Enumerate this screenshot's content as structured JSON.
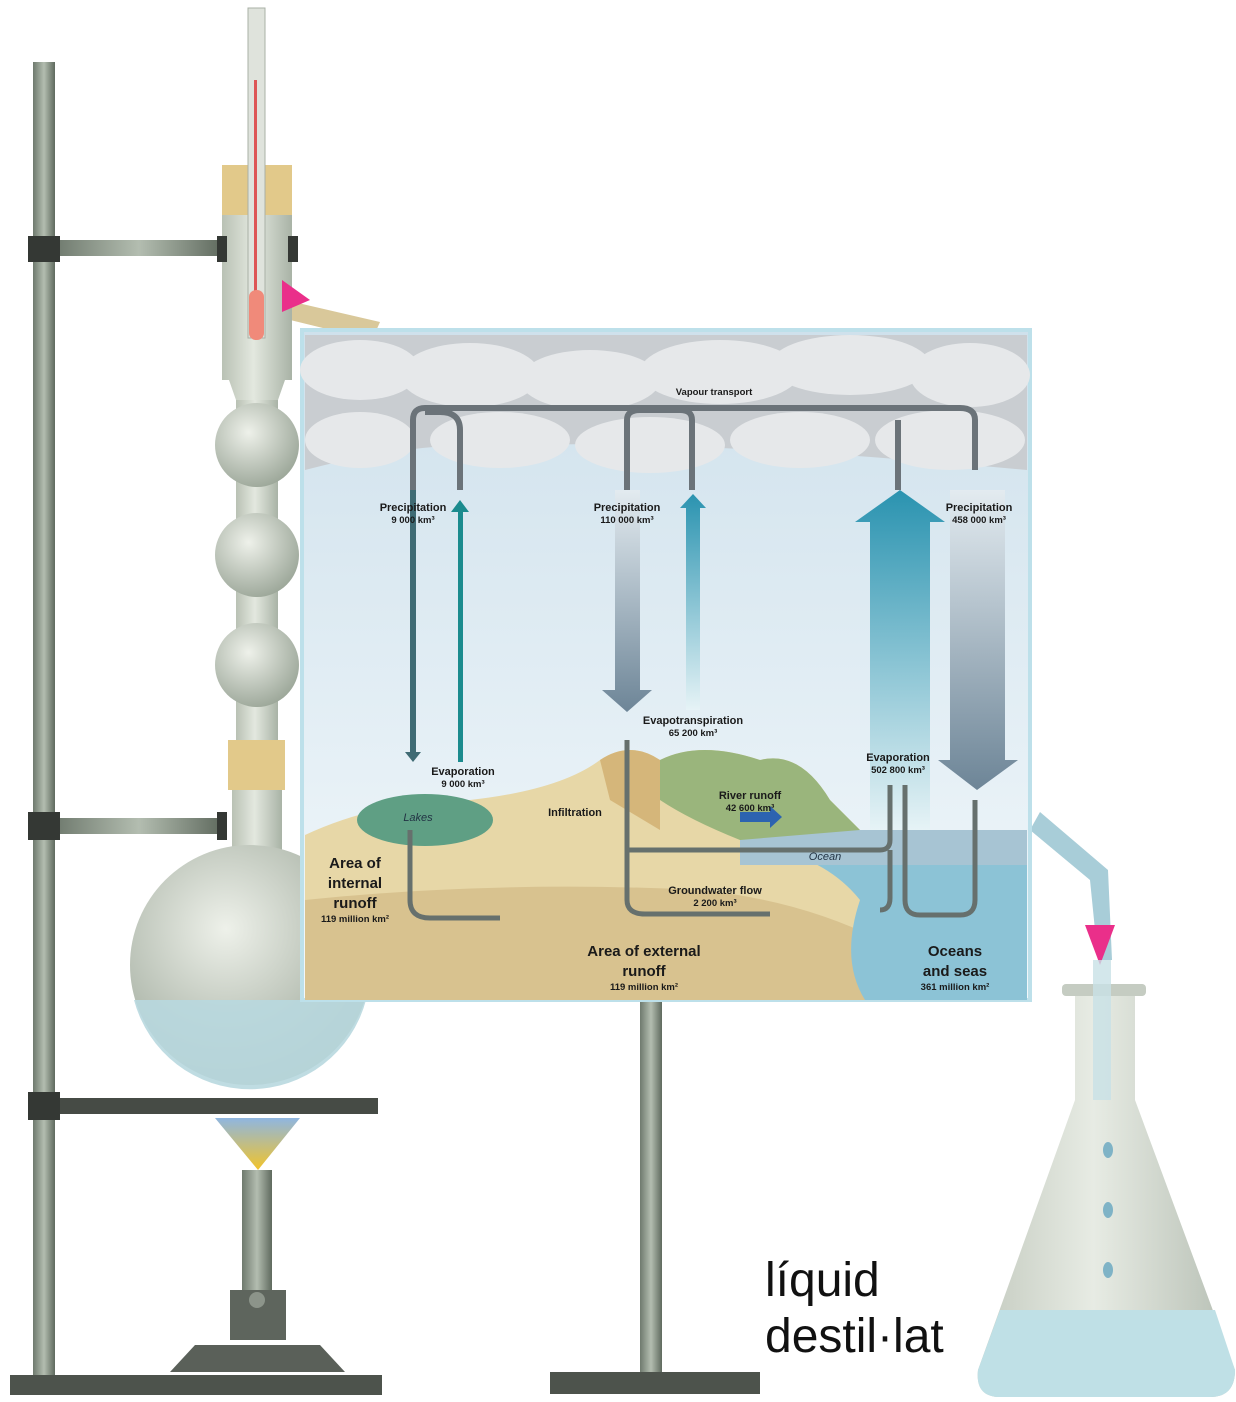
{
  "vapour_transport": "Vapour transport",
  "flows": [
    {
      "label": "Precipitation",
      "amount": "9 000 km³"
    },
    {
      "label": "Evaporation",
      "amount": "9 000 km³"
    },
    {
      "label": "Precipitation",
      "amount": "110 000 km³"
    },
    {
      "label": "Evapotranspiration",
      "amount": "65 200 km³"
    },
    {
      "label": "Precipitation",
      "amount": "458 000 km³"
    },
    {
      "label": "Evaporation",
      "amount": "502 800 km³"
    },
    {
      "label": "River runoff",
      "amount": "42 600 km³"
    },
    {
      "label": "Groundwater flow",
      "amount": "2 200 km³"
    }
  ],
  "features": [
    "Lakes",
    "Infiltration",
    "Ocean"
  ],
  "areas": [
    {
      "lines": [
        "Area of",
        "internal",
        "runoff"
      ],
      "size": "119 million km²"
    },
    {
      "lines": [
        "Area of external",
        "runoff"
      ],
      "size": "119 million km²"
    },
    {
      "lines": [
        "Oceans",
        "and seas"
      ],
      "size": "361 million km²"
    }
  ],
  "caption": [
    "líquid",
    "destil·lat"
  ]
}
